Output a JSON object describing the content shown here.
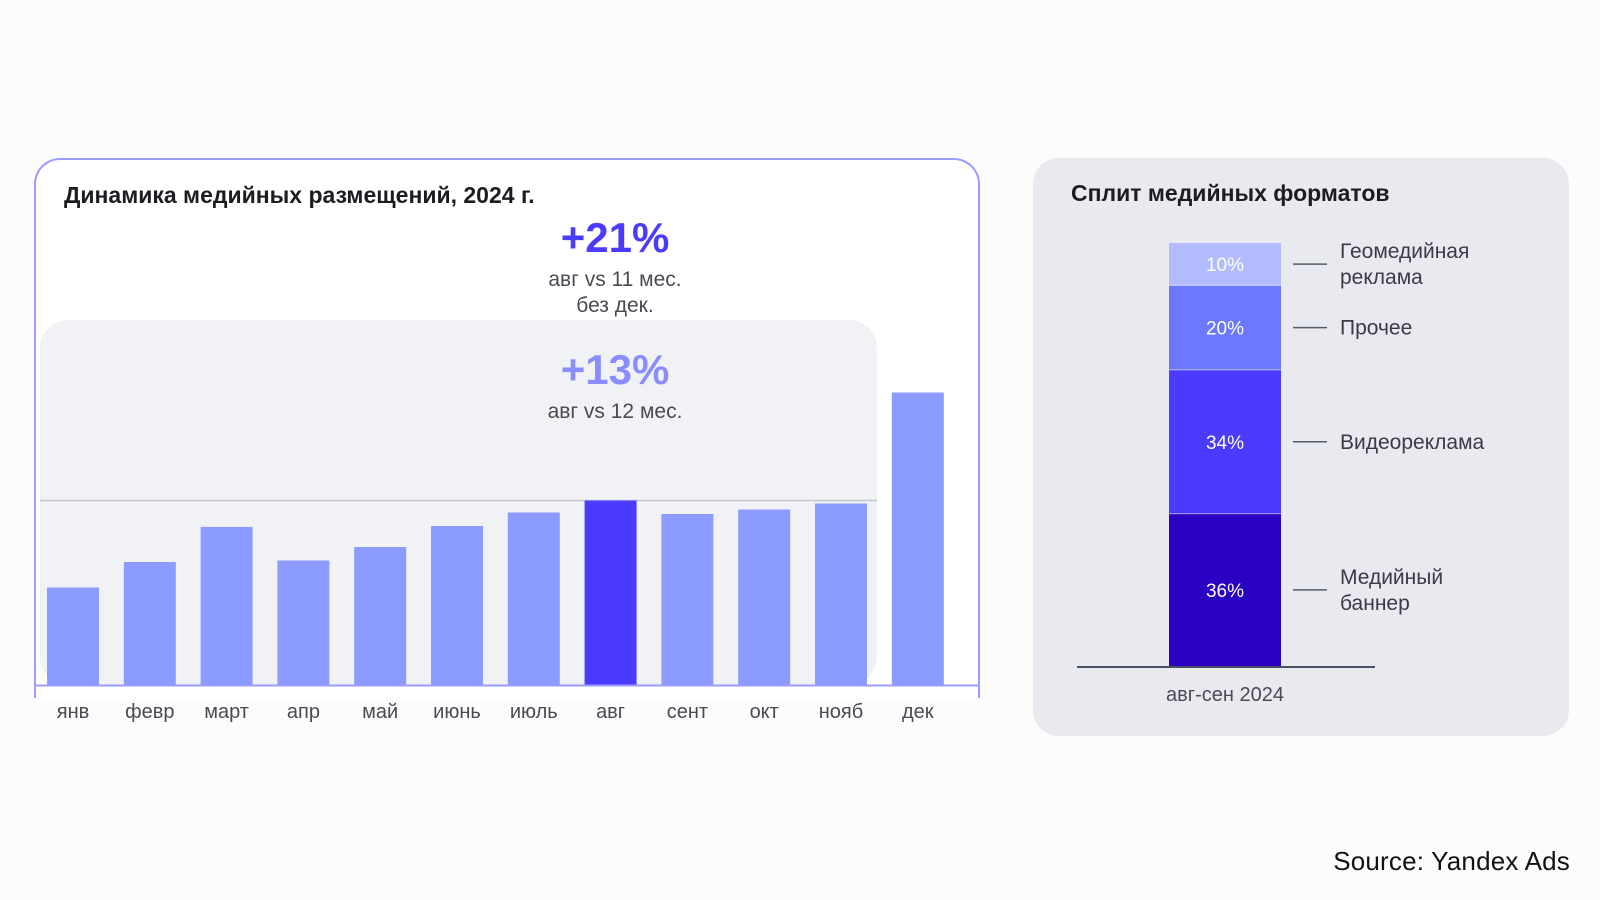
{
  "source": "Source: Yandex Ads",
  "colors": {
    "bar": "#8b9bff",
    "bar_highlight": "#4b3bff",
    "band": "#f1f2f6",
    "accent_text": "#4b3bff",
    "accent_text_light": "#8a8cff"
  },
  "chart_data": [
    {
      "type": "bar",
      "title": "Динамика медийных размещений, 2024 г.",
      "categories": [
        "янв",
        "февр",
        "март",
        "апр",
        "май",
        "июнь",
        "июль",
        "авг",
        "сент",
        "окт",
        "нояб",
        "дек"
      ],
      "values": [
        32.5,
        41,
        52.7,
        41.5,
        46,
        53,
        57.5,
        61.5,
        57,
        58.5,
        60.5,
        97.5
      ],
      "highlight": "авг",
      "ylim": [
        0,
        100
      ],
      "grid": false,
      "annotations": [
        {
          "value": "+21%",
          "text_line1": "авг vs 11 мес.",
          "text_line2": "без дек."
        },
        {
          "value": "+13%",
          "text_line1": "авг vs 12 мес."
        }
      ]
    },
    {
      "type": "bar",
      "title": "Сплит медийных форматов",
      "categories": [
        "авг-сен 2024"
      ],
      "stacked": true,
      "series": [
        {
          "name": "Медийный баннер",
          "label_lines": [
            "Медийный",
            "баннер"
          ],
          "value": 36,
          "label": "36%",
          "color": "#2a00c3"
        },
        {
          "name": "Видеореклама",
          "label_lines": [
            "Видеореклама"
          ],
          "value": 34,
          "label": "34%",
          "color": "#4b3bff"
        },
        {
          "name": "Прочее",
          "label_lines": [
            "Прочее"
          ],
          "value": 20,
          "label": "20%",
          "color": "#6b78ff"
        },
        {
          "name": "Геомедийная реклама",
          "label_lines": [
            "Геомедийная",
            "реклама"
          ],
          "value": 10,
          "label": "10%",
          "color": "#b3bbff"
        }
      ]
    }
  ]
}
